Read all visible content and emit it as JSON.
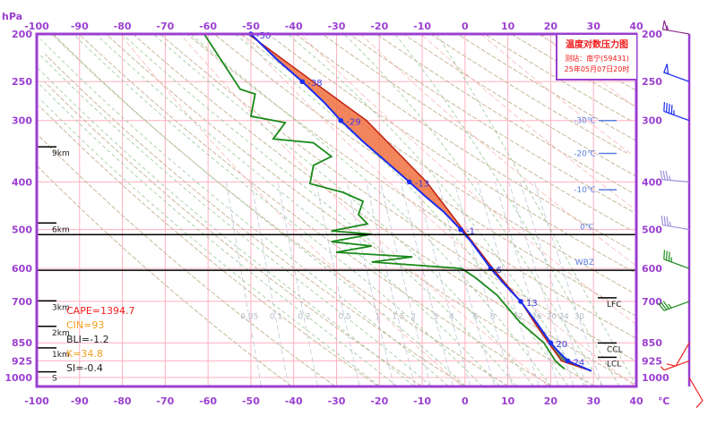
{
  "chart_data": {
    "type": "line",
    "title": "温度对数压力图",
    "station": "测站：南宁(59431)",
    "time": "25年05月07日20时",
    "x_unit": "℃",
    "y_unit": "hPa",
    "xlim": [
      -100,
      40
    ],
    "ylim": [
      1040,
      200
    ],
    "y_scale": "log",
    "x_ticks": [
      -100,
      -90,
      -80,
      -70,
      -60,
      -50,
      -40,
      -30,
      -20,
      -10,
      0,
      10,
      20,
      30,
      40
    ],
    "y_ticks": [
      200,
      250,
      300,
      400,
      500,
      600,
      700,
      850,
      925,
      1000
    ],
    "grid": true,
    "series": [
      {
        "key": "temperature",
        "color": "#1a2cf0",
        "points": [
          [
            970,
            29.5
          ],
          [
            925,
            24
          ],
          [
            880,
            21.5
          ],
          [
            850,
            20
          ],
          [
            780,
            17
          ],
          [
            700,
            13
          ],
          [
            650,
            9.5
          ],
          [
            600,
            6
          ],
          [
            560,
            3.5
          ],
          [
            530,
            1.5
          ],
          [
            500,
            -1
          ],
          [
            460,
            -5
          ],
          [
            430,
            -9
          ],
          [
            400,
            -13
          ],
          [
            360,
            -19
          ],
          [
            330,
            -24
          ],
          [
            300,
            -29
          ],
          [
            275,
            -33
          ],
          [
            250,
            -38
          ],
          [
            225,
            -44
          ],
          [
            200,
            -50
          ]
        ]
      },
      {
        "key": "dewpoint",
        "color": "#1a8a1a",
        "points": [
          [
            960,
            23.2
          ],
          [
            925,
            21.1
          ],
          [
            850,
            18.4
          ],
          [
            771,
            12.8
          ],
          [
            680,
            7.5
          ],
          [
            625,
            2.3
          ],
          [
            600,
            -0.8
          ],
          [
            590,
            -12.3
          ],
          [
            582,
            -21.8
          ],
          [
            568,
            -12.3
          ],
          [
            556,
            -30.1
          ],
          [
            540,
            -21.8
          ],
          [
            529,
            -31.2
          ],
          [
            511,
            -21.8
          ],
          [
            503,
            -31.2
          ],
          [
            487,
            -22.8
          ],
          [
            466,
            -24.9
          ],
          [
            438,
            -23.8
          ],
          [
            420,
            -28.5
          ],
          [
            403,
            -36.2
          ],
          [
            370,
            -35.4
          ],
          [
            355,
            -31.2
          ],
          [
            333,
            -35.4
          ],
          [
            327,
            -44.8
          ],
          [
            303,
            -42
          ],
          [
            294,
            -50
          ],
          [
            265,
            -49
          ],
          [
            259,
            -52.5
          ],
          [
            200,
            -60.9
          ]
        ]
      },
      {
        "key": "parcel",
        "color": "#c02010",
        "points": [
          [
            970,
            29.5
          ],
          [
            925,
            22.5
          ],
          [
            850,
            19.5
          ],
          [
            780,
            16.5
          ],
          [
            700,
            13
          ],
          [
            600,
            6.5
          ],
          [
            500,
            -0.5
          ],
          [
            400,
            -9
          ],
          [
            300,
            -23
          ],
          [
            250,
            -35.5
          ],
          [
            200,
            -50.6
          ]
        ]
      }
    ],
    "level_labels": [
      {
        "p": 200,
        "t": -50,
        "text": "-50"
      },
      {
        "p": 250,
        "t": -38,
        "text": "-38"
      },
      {
        "p": 300,
        "t": -29,
        "text": "-29"
      },
      {
        "p": 400,
        "t": -13,
        "text": "-13"
      },
      {
        "p": 500,
        "t": -1,
        "text": "-1"
      },
      {
        "p": 600,
        "t": 6,
        "text": "6"
      },
      {
        "p": 700,
        "t": 13,
        "text": "13"
      },
      {
        "p": 850,
        "t": 20,
        "text": "20"
      },
      {
        "p": 925,
        "t": 24,
        "text": "24"
      }
    ],
    "height_marks": [
      {
        "p": 345,
        "text": "9km"
      },
      {
        "p": 493,
        "text": "6km"
      },
      {
        "p": 710,
        "text": "3km"
      },
      {
        "p": 800,
        "text": "2km"
      },
      {
        "p": 885,
        "text": "1km"
      },
      {
        "p": 990,
        "text": "S"
      }
    ],
    "horizontal_lines": [
      {
        "p": 512,
        "label": "0℃"
      },
      {
        "p": 605,
        "label": "WBZ"
      }
    ],
    "isotherm_marks": [
      {
        "p": 300,
        "text": "-30℃"
      },
      {
        "p": 350,
        "text": "-20℃"
      },
      {
        "p": 415,
        "text": "-10℃"
      }
    ],
    "levels_right": [
      {
        "p": 700,
        "text": "LFC"
      },
      {
        "p": 865,
        "text": "CCL"
      },
      {
        "p": 925,
        "text": "LCL"
      }
    ],
    "indices": [
      {
        "text": "CAPE=1394.7",
        "color": "#f02020"
      },
      {
        "text": "CIN=93",
        "color": "#f0a020"
      },
      {
        "text": "BLI=-1.2",
        "color": "#222222"
      },
      {
        "text": "K=34.8",
        "color": "#f0a020"
      },
      {
        "text": "SI=-0.4",
        "color": "#222222"
      }
    ],
    "mixing_ratio_labels": [
      "0.05",
      "0.1",
      "0.2",
      "0.5",
      "1",
      "1.5",
      "2",
      "3",
      "4",
      "6",
      "8",
      "12",
      "16",
      "20",
      "24",
      "30"
    ],
    "wind_barbs": [
      {
        "p": 200,
        "dir": 280,
        "speed": 55,
        "color": "#8b2a8b"
      },
      {
        "p": 250,
        "dir": 290,
        "speed": 50,
        "color": "#1a2cf0"
      },
      {
        "p": 300,
        "dir": 290,
        "speed": 45,
        "color": "#1a2cf0"
      },
      {
        "p": 400,
        "dir": 275,
        "speed": 35,
        "color": "#a090e0"
      },
      {
        "p": 500,
        "dir": 280,
        "speed": 35,
        "color": "#a090e0"
      },
      {
        "p": 600,
        "dir": 290,
        "speed": 35,
        "color": "#1a8a1a"
      },
      {
        "p": 700,
        "dir": 250,
        "speed": 35,
        "color": "#1a8a1a"
      },
      {
        "p": 850,
        "dir": 210,
        "speed": 10,
        "color": "#f02020"
      },
      {
        "p": 925,
        "dir": 250,
        "speed": 5,
        "color": "#f02020"
      },
      {
        "p": 1000,
        "dir": 150,
        "speed": 10,
        "color": "#f02020"
      }
    ],
    "colors": {
      "axis": "#9b3fd0",
      "grid": "#ffb0c0",
      "cape_fill": "#f07040",
      "cin_fill": "#4a7050"
    }
  }
}
